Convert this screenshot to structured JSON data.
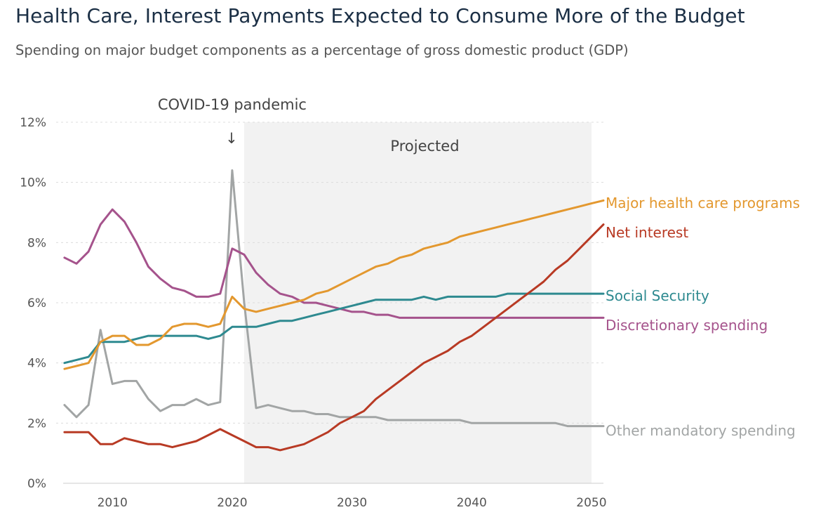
{
  "chart_data": {
    "type": "line",
    "title": "Health Care, Interest Payments Expected to Consume More of the Budget",
    "subtitle": "Spending on major budget components as a percentage of gross domestic product (GDP)",
    "xlabel": "",
    "ylabel": "",
    "xlim": [
      2005.3,
      2051
    ],
    "ylim": [
      0,
      12
    ],
    "x_ticks": [
      2010,
      2020,
      2030,
      2040,
      2050
    ],
    "y_ticks": [
      0,
      2,
      4,
      6,
      8,
      10,
      12
    ],
    "y_tick_labels": [
      "0%",
      "2%",
      "4%",
      "6%",
      "8%",
      "10%",
      "12%"
    ],
    "x_tick_labels": [
      "2010",
      "2020",
      "2030",
      "2040",
      "2050"
    ],
    "grid": "horizontal dashed",
    "legend": "direct labels at right end of lines",
    "projected_region": {
      "from": 2021,
      "to": 2051,
      "label": "Projected"
    },
    "annotations": [
      {
        "text": "COVID-19 pandemic",
        "x": 2020,
        "arrow": "↓"
      }
    ],
    "x": [
      2006,
      2007,
      2008,
      2009,
      2010,
      2011,
      2012,
      2013,
      2014,
      2015,
      2016,
      2017,
      2018,
      2019,
      2020,
      2021,
      2022,
      2023,
      2024,
      2025,
      2026,
      2027,
      2028,
      2029,
      2030,
      2031,
      2032,
      2033,
      2034,
      2035,
      2036,
      2037,
      2038,
      2039,
      2040,
      2041,
      2042,
      2043,
      2044,
      2045,
      2046,
      2047,
      2048,
      2049,
      2050,
      2051
    ],
    "series": [
      {
        "name": "Major health care programs",
        "color": "#e3982f",
        "values": [
          3.8,
          3.9,
          4.0,
          4.7,
          4.9,
          4.9,
          4.6,
          4.6,
          4.8,
          5.2,
          5.3,
          5.3,
          5.2,
          5.3,
          6.2,
          5.8,
          5.7,
          5.8,
          5.9,
          6.0,
          6.1,
          6.3,
          6.4,
          6.6,
          6.8,
          7.0,
          7.2,
          7.3,
          7.5,
          7.6,
          7.8,
          7.9,
          8.0,
          8.2,
          8.3,
          8.4,
          8.5,
          8.6,
          8.7,
          8.8,
          8.9,
          9.0,
          9.1,
          9.2,
          9.3,
          9.4
        ]
      },
      {
        "name": "Net interest",
        "color": "#b83a24",
        "values": [
          1.7,
          1.7,
          1.7,
          1.3,
          1.3,
          1.5,
          1.4,
          1.3,
          1.3,
          1.2,
          1.3,
          1.4,
          1.6,
          1.8,
          1.6,
          1.4,
          1.2,
          1.2,
          1.1,
          1.2,
          1.3,
          1.5,
          1.7,
          2.0,
          2.2,
          2.4,
          2.8,
          3.1,
          3.4,
          3.7,
          4.0,
          4.2,
          4.4,
          4.7,
          4.9,
          5.2,
          5.5,
          5.8,
          6.1,
          6.4,
          6.7,
          7.1,
          7.4,
          7.8,
          8.2,
          8.6
        ]
      },
      {
        "name": "Social Security",
        "color": "#2e8a90",
        "values": [
          4.0,
          4.1,
          4.2,
          4.7,
          4.7,
          4.7,
          4.8,
          4.9,
          4.9,
          4.9,
          4.9,
          4.9,
          4.8,
          4.9,
          5.2,
          5.2,
          5.2,
          5.3,
          5.4,
          5.4,
          5.5,
          5.6,
          5.7,
          5.8,
          5.9,
          6.0,
          6.1,
          6.1,
          6.1,
          6.1,
          6.2,
          6.1,
          6.2,
          6.2,
          6.2,
          6.2,
          6.2,
          6.3,
          6.3,
          6.3,
          6.3,
          6.3,
          6.3,
          6.3,
          6.3,
          6.3
        ]
      },
      {
        "name": "Discretionary spending",
        "color": "#a5538c",
        "values": [
          7.5,
          7.3,
          7.7,
          8.6,
          9.1,
          8.7,
          8.0,
          7.2,
          6.8,
          6.5,
          6.4,
          6.2,
          6.2,
          6.3,
          7.8,
          7.6,
          7.0,
          6.6,
          6.3,
          6.2,
          6.0,
          6.0,
          5.9,
          5.8,
          5.7,
          5.7,
          5.6,
          5.6,
          5.5,
          5.5,
          5.5,
          5.5,
          5.5,
          5.5,
          5.5,
          5.5,
          5.5,
          5.5,
          5.5,
          5.5,
          5.5,
          5.5,
          5.5,
          5.5,
          5.5,
          5.5
        ]
      },
      {
        "name": "Other mandatory spending",
        "color": "#a2a5a5",
        "values": [
          2.6,
          2.2,
          2.6,
          5.1,
          3.3,
          3.4,
          3.4,
          2.8,
          2.4,
          2.6,
          2.6,
          2.8,
          2.6,
          2.7,
          10.4,
          6.0,
          2.5,
          2.6,
          2.5,
          2.4,
          2.4,
          2.3,
          2.3,
          2.2,
          2.2,
          2.2,
          2.2,
          2.1,
          2.1,
          2.1,
          2.1,
          2.1,
          2.1,
          2.1,
          2.0,
          2.0,
          2.0,
          2.0,
          2.0,
          2.0,
          2.0,
          2.0,
          1.9,
          1.9,
          1.9,
          1.9
        ]
      }
    ]
  }
}
